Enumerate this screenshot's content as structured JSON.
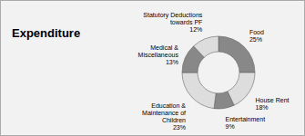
{
  "chart_data": {
    "type": "pie",
    "title": "Expenditure",
    "categories": [
      "Food\n25%",
      "House Rent\n18%",
      "Entertainment\n9%",
      "Education &\nMaintenance of\nChildren\n23%",
      "Medical &\nMiscellaneous\n13%",
      "Statutory Deductions\ntowards PF\n12%"
    ],
    "values": [
      25,
      18,
      9,
      23,
      13,
      12
    ],
    "colors": [
      "#888888",
      "#dddddd",
      "#888888",
      "#dddddd",
      "#888888",
      "#dddddd"
    ]
  }
}
